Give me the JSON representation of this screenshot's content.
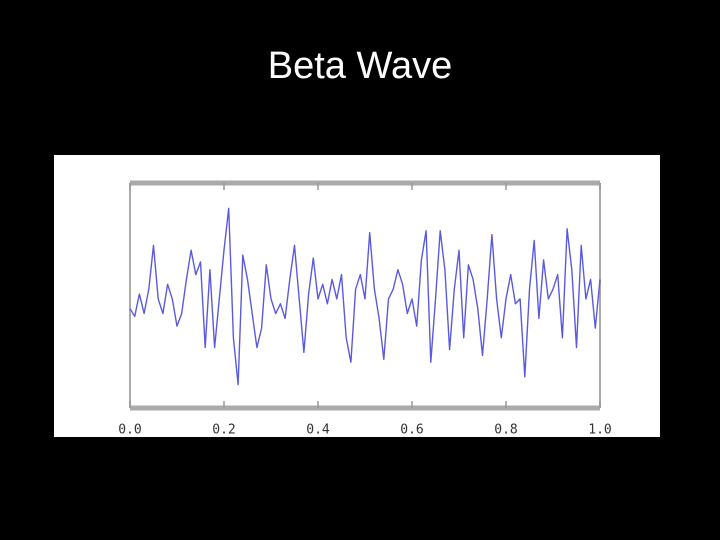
{
  "chart_data": {
    "type": "line",
    "title": "Beta Wave",
    "x": [
      0,
      0.01,
      0.02,
      0.03,
      0.04,
      0.05,
      0.06,
      0.07,
      0.08,
      0.09,
      0.1,
      0.11,
      0.12,
      0.13,
      0.14,
      0.15,
      0.16,
      0.17,
      0.18,
      0.19,
      0.2,
      0.21,
      0.22,
      0.23,
      0.24,
      0.25,
      0.26,
      0.27,
      0.28,
      0.29,
      0.3,
      0.31,
      0.32,
      0.33,
      0.34,
      0.35,
      0.36,
      0.37,
      0.38,
      0.39,
      0.4,
      0.41,
      0.42,
      0.43,
      0.44,
      0.45,
      0.46,
      0.47,
      0.48,
      0.49,
      0.5,
      0.51,
      0.52,
      0.53,
      0.54,
      0.55,
      0.56,
      0.57,
      0.58,
      0.59,
      0.6,
      0.61,
      0.62,
      0.63,
      0.64,
      0.65,
      0.66,
      0.67,
      0.68,
      0.69,
      0.7,
      0.71,
      0.72,
      0.73,
      0.74,
      0.75,
      0.76,
      0.77,
      0.78,
      0.79,
      0.8,
      0.81,
      0.82,
      0.83,
      0.84,
      0.85,
      0.86,
      0.87,
      0.88,
      0.89,
      0.9,
      0.91,
      0.92,
      0.93,
      0.94,
      0.95,
      0.96,
      0.97,
      0.98,
      0.99,
      1
    ],
    "values": [
      -0.1,
      -0.18,
      0.05,
      -0.15,
      0.1,
      0.55,
      0,
      -0.15,
      0.15,
      0,
      -0.28,
      -0.15,
      0.2,
      0.5,
      0.25,
      0.38,
      -0.5,
      0.3,
      -0.5,
      0,
      0.5,
      0.93,
      -0.4,
      -0.88,
      0.45,
      0.2,
      -0.15,
      -0.5,
      -0.3,
      0.35,
      0,
      -0.15,
      -0.05,
      -0.2,
      0.2,
      0.55,
      0,
      -0.55,
      0.05,
      0.42,
      0,
      0.15,
      -0.05,
      0.2,
      0,
      0.25,
      -0.4,
      -0.65,
      0.1,
      0.25,
      0,
      0.68,
      0.1,
      -0.2,
      -0.62,
      0,
      0.1,
      0.3,
      0.15,
      -0.15,
      0,
      -0.28,
      0.4,
      0.7,
      -0.65,
      0,
      0.7,
      0.3,
      -0.52,
      0.1,
      0.5,
      -0.4,
      0.35,
      0.2,
      -0.1,
      -0.58,
      0,
      0.66,
      0,
      -0.4,
      0,
      0.25,
      -0.05,
      0,
      -0.8,
      0.1,
      0.6,
      -0.2,
      0.4,
      0,
      0.1,
      0.25,
      -0.4,
      0.72,
      0.3,
      -0.5,
      0.55,
      0,
      0.2,
      -0.3,
      0.2
    ],
    "color": "#5a5ae0",
    "xlim": [
      0,
      1
    ],
    "xticks": [
      {
        "value": 0,
        "label": "0.0"
      },
      0.2,
      0.4,
      0.6,
      0.8,
      {
        "value": 1,
        "label": "1.0"
      }
    ],
    "ylim": [
      -1.1,
      1.17
    ]
  }
}
